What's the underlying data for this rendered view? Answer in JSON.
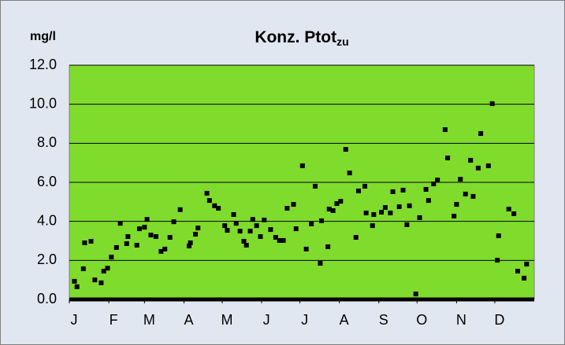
{
  "chart_data": {
    "type": "scatter",
    "title": "Konz. Ptot",
    "title_subscript": "zu",
    "y_label": "mg/l",
    "color": "#000000",
    "background": "#80dc2c",
    "grid": true,
    "xlim": [
      0,
      365
    ],
    "xticks": [
      {
        "value": 0,
        "label": "J"
      },
      {
        "value": 31,
        "label": "F"
      },
      {
        "value": 59,
        "label": "M"
      },
      {
        "value": 90,
        "label": "A"
      },
      {
        "value": 120,
        "label": "M"
      },
      {
        "value": 151,
        "label": "J"
      },
      {
        "value": 181,
        "label": "J"
      },
      {
        "value": 212,
        "label": "A"
      },
      {
        "value": 243,
        "label": "S"
      },
      {
        "value": 273,
        "label": "O"
      },
      {
        "value": 304,
        "label": "N"
      },
      {
        "value": 334,
        "label": "D"
      }
    ],
    "ylim": [
      0,
      12
    ],
    "yticks": [
      {
        "value": 0,
        "label": "0.0"
      },
      {
        "value": 2,
        "label": "2.0"
      },
      {
        "value": 4,
        "label": "4.0"
      },
      {
        "value": 6,
        "label": "6.0"
      },
      {
        "value": 8,
        "label": "8.0"
      },
      {
        "value": 10,
        "label": "10.0"
      },
      {
        "value": 12,
        "label": "12.0"
      }
    ],
    "x": [
      4,
      6,
      11,
      12,
      17,
      20,
      25,
      27,
      30,
      33,
      37,
      40,
      45,
      46,
      53,
      55,
      59,
      61,
      64,
      68,
      72,
      75,
      79,
      82,
      87,
      94,
      95,
      99,
      101,
      108,
      110,
      114,
      117,
      122,
      124,
      129,
      131,
      134,
      137,
      139,
      142,
      144,
      147,
      150,
      153,
      158,
      162,
      165,
      168,
      171,
      176,
      178,
      183,
      186,
      190,
      193,
      197,
      198,
      203,
      204,
      207,
      210,
      213,
      217,
      220,
      225,
      227,
      232,
      233,
      238,
      239,
      245,
      248,
      252,
      254,
      259,
      262,
      265,
      267,
      272,
      275,
      280,
      282,
      286,
      289,
      295,
      297,
      302,
      304,
      307,
      311,
      315,
      317,
      321,
      323,
      329,
      332,
      336,
      337,
      345,
      349,
      352,
      357,
      359
    ],
    "values": [
      0.93,
      0.65,
      1.57,
      2.9,
      2.98,
      1.0,
      0.85,
      1.45,
      1.6,
      2.17,
      2.66,
      3.9,
      2.86,
      3.22,
      2.78,
      3.62,
      3.7,
      4.1,
      3.3,
      3.22,
      2.46,
      2.58,
      3.18,
      3.98,
      4.6,
      2.74,
      2.9,
      3.34,
      3.66,
      5.44,
      5.07,
      4.8,
      4.67,
      3.78,
      3.54,
      4.35,
      3.9,
      3.5,
      2.98,
      2.78,
      3.5,
      4.1,
      3.78,
      3.22,
      4.07,
      3.58,
      3.18,
      3.02,
      3.02,
      4.67,
      4.87,
      3.62,
      6.85,
      2.58,
      3.87,
      5.8,
      1.85,
      4.03,
      2.7,
      4.63,
      4.55,
      4.91,
      5.03,
      7.69,
      6.48,
      3.18,
      5.56,
      5.8,
      4.43,
      3.78,
      4.35,
      4.47,
      4.71,
      4.43,
      5.52,
      4.75,
      5.6,
      3.83,
      4.8,
      0.28,
      4.19,
      5.64,
      5.07,
      5.92,
      6.12,
      8.7,
      7.25,
      4.27,
      4.87,
      6.16,
      5.4,
      7.13,
      5.28,
      6.73,
      8.5,
      6.85,
      10.03,
      2.01,
      3.26,
      4.63,
      4.39,
      1.45,
      1.09,
      1.81
    ]
  }
}
